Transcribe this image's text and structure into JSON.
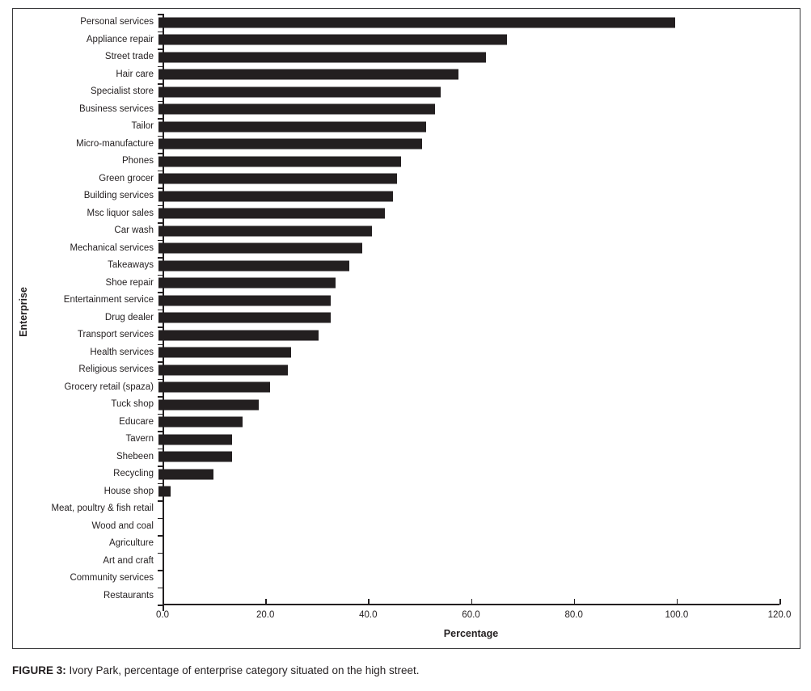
{
  "figure": {
    "caption_prefix": "FIGURE 3:",
    "caption_text": " Ivory Park, percentage of enterprise category situated on the high street."
  },
  "chart_data": {
    "type": "bar",
    "orientation": "horizontal",
    "title": "",
    "xlabel": "Percentage",
    "ylabel": "Enterprise",
    "xlim": [
      0,
      120
    ],
    "xticks": [
      "0.0",
      "20.0",
      "40.0",
      "60.0",
      "80.0",
      "100.0",
      "120.0"
    ],
    "grid": false,
    "legend": false,
    "bar_color": "#231F20",
    "axis_color": "#231F20",
    "categories": [
      "Personal services",
      "Appliance repair",
      "Street trade",
      "Hair care",
      "Specialist store",
      "Business services",
      "Tailor",
      "Micro-manufacture",
      "Phones",
      "Green grocer",
      "Building services",
      "Msc liquor sales",
      "Car wash",
      "Mechanical services",
      "Takeaways",
      "Shoe repair",
      "Entertainment service",
      "Drug dealer",
      "Transport services",
      "Health services",
      "Religious services",
      "Grocery retail (spaza)",
      "Tuck shop",
      "Educare",
      "Tavern",
      "Shebeen",
      "Recycling",
      "House shop",
      "Meat, poultry & fish retail",
      "Wood and coal",
      "Agriculture",
      "Art and craft",
      "Community services",
      "Restaurants"
    ],
    "values": [
      100.0,
      67.4,
      63.3,
      58.1,
      54.6,
      53.5,
      51.8,
      51.0,
      47.0,
      46.1,
      45.3,
      43.8,
      41.3,
      39.4,
      37.0,
      34.3,
      33.4,
      33.4,
      30.9,
      25.7,
      25.0,
      21.6,
      19.4,
      16.2,
      14.3,
      14.2,
      10.7,
      2.4,
      0,
      0,
      0,
      0,
      0,
      0
    ]
  }
}
